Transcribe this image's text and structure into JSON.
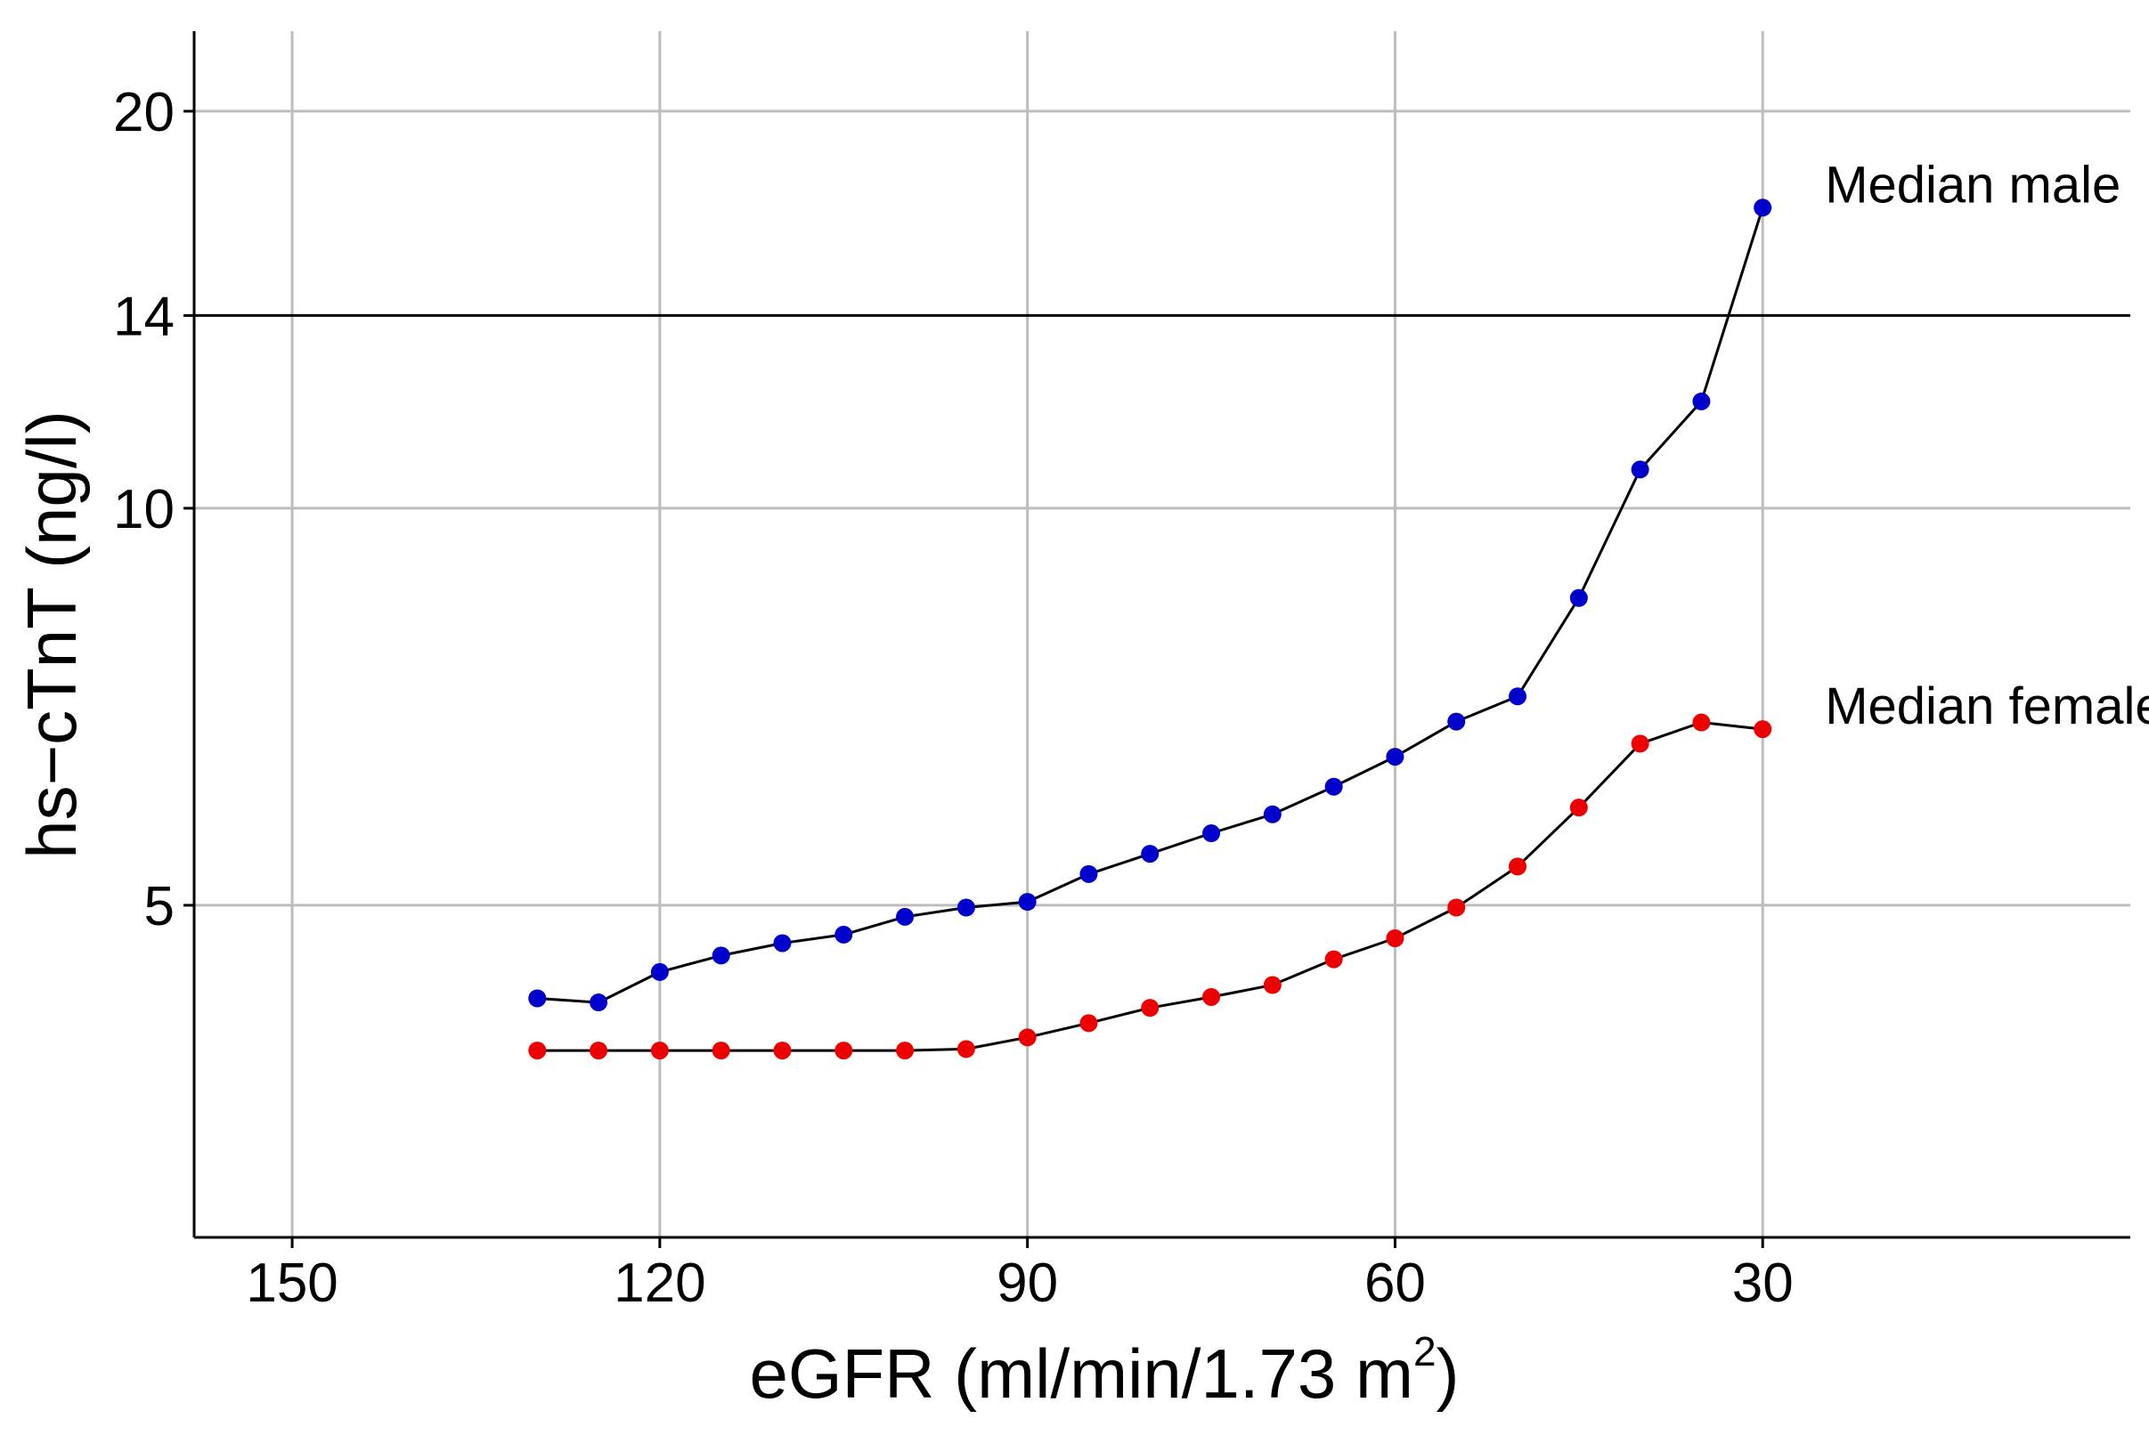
{
  "chart_data": {
    "type": "line",
    "title": "",
    "xlabel": "eGFR (ml/min/1.73 m",
    "xlabel_superscript": "2",
    "xlabel_close": ")",
    "ylabel": "hs−cTnT (ng/l)",
    "x_reversed": true,
    "xlim": [
      158,
      0
    ],
    "y_scale": "log",
    "ylim": [
      2.8,
      23
    ],
    "grid": true,
    "x_ticks": [
      150,
      120,
      90,
      60,
      30
    ],
    "x_tick_labels": [
      "150",
      "120",
      "90",
      "60",
      "30"
    ],
    "y_ticks": [
      5,
      10,
      14,
      20
    ],
    "y_tick_labels": [
      "5",
      "10",
      "14",
      "20"
    ],
    "reference_line": {
      "y": 14,
      "color": "#000000"
    },
    "legend": "none",
    "series": [
      {
        "name": "Median male",
        "color": "#0000cc",
        "x": [
          130,
          125,
          120,
          115,
          110,
          105,
          100,
          95,
          90,
          85,
          80,
          75,
          70,
          65,
          60,
          55,
          50,
          45,
          40,
          35,
          30
        ],
        "y": [
          4.25,
          4.22,
          4.45,
          4.58,
          4.68,
          4.75,
          4.9,
          4.98,
          5.03,
          5.28,
          5.47,
          5.67,
          5.86,
          6.15,
          6.48,
          6.89,
          7.2,
          8.55,
          10.7,
          12.05,
          16.9
        ]
      },
      {
        "name": "Median female",
        "color": "#ee0000",
        "x": [
          130,
          125,
          120,
          115,
          110,
          105,
          100,
          95,
          90,
          85,
          80,
          75,
          70,
          65,
          60,
          55,
          50,
          45,
          40,
          35,
          30
        ],
        "y": [
          3.88,
          3.88,
          3.88,
          3.88,
          3.88,
          3.88,
          3.88,
          3.89,
          3.97,
          4.07,
          4.18,
          4.26,
          4.35,
          4.55,
          4.72,
          4.98,
          5.35,
          5.93,
          6.63,
          6.88,
          6.8
        ]
      }
    ]
  }
}
